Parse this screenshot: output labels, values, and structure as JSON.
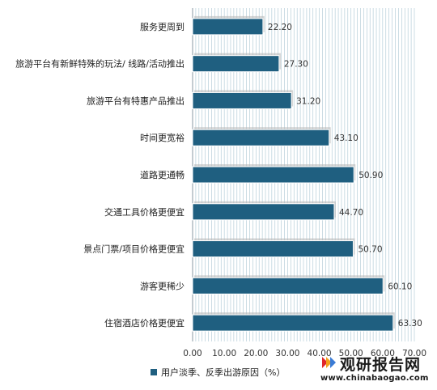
{
  "chart_data": {
    "type": "bar",
    "orientation": "horizontal",
    "categories": [
      "服务更周到",
      "旅游平台有新鲜特殊的玩法/ 线路/活动推出",
      "旅游平台有特惠产品推出",
      "时间更宽裕",
      "道路更通畅",
      "交通工具价格更便宜",
      "景点门票/项目价格更便宜",
      "游客更稀少",
      "住宿酒店价格更便宜"
    ],
    "series": [
      {
        "name": "用户淡季、反季出游原因（%）",
        "values": [
          22.2,
          27.3,
          31.2,
          43.1,
          50.9,
          44.7,
          50.7,
          60.1,
          63.3
        ],
        "labels": [
          "22.20",
          "27.30",
          "31.20",
          "43.10",
          "50.90",
          "44.70",
          "50.70",
          "60.10",
          "63.30"
        ]
      }
    ],
    "xlim": [
      0,
      70
    ],
    "xticks": [
      "0.00",
      "10.00",
      "20.00",
      "30.00",
      "40.00",
      "50.00",
      "60.00",
      "70.00"
    ],
    "grid": true,
    "legend_position": "bottom",
    "title": "",
    "xlabel": "",
    "ylabel": ""
  },
  "colors": {
    "bar": "#1f5f80",
    "grid": "#a9c6d3",
    "axis": "#8a9aa3",
    "shadow": "#b3b3b3"
  },
  "watermark": {
    "title": "观研报告网",
    "url": "www.chinabaogao.com",
    "logo_icon": "chinabaogao-logo-icon"
  }
}
